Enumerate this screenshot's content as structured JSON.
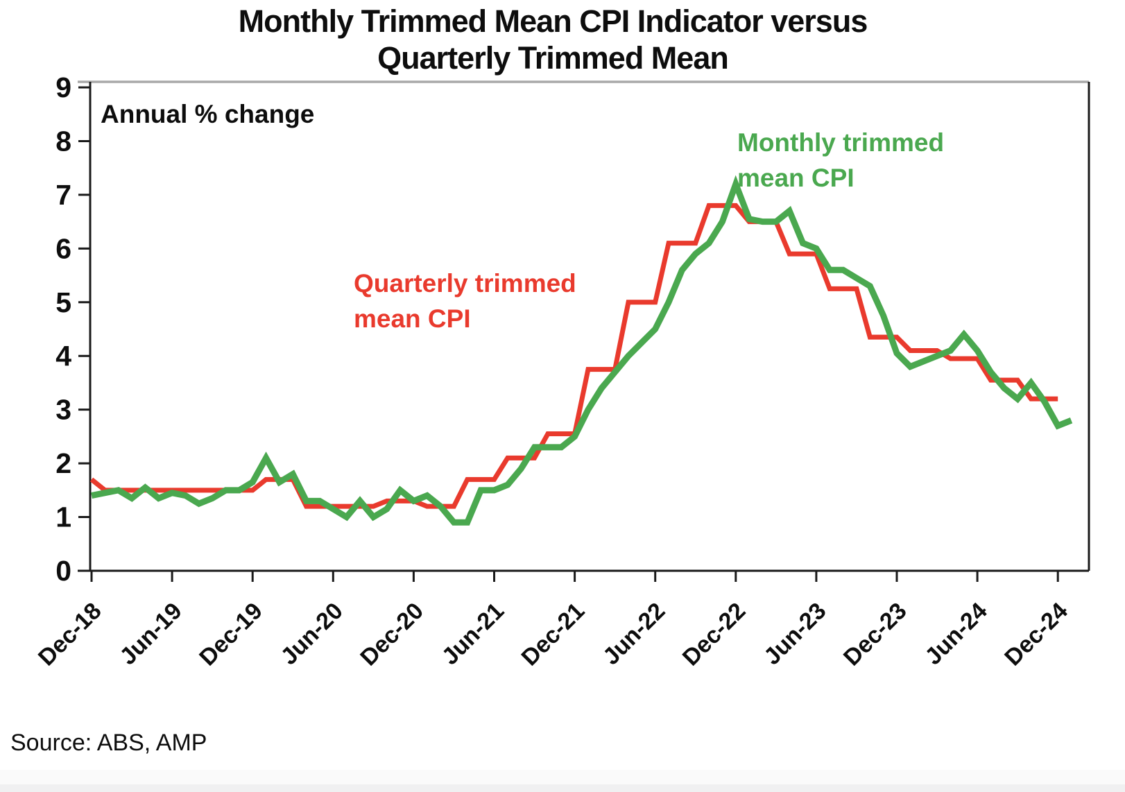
{
  "title": {
    "line1": "Monthly Trimmed Mean CPI Indicator versus",
    "line2": "Quarterly Trimmed Mean"
  },
  "annotation": "Annual % change",
  "source": "Source: ABS, AMP",
  "legend": {
    "monthly": {
      "line1": "Monthly trimmed",
      "line2": "mean CPI"
    },
    "quarterly": {
      "line1": "Quarterly trimmed",
      "line2": "mean CPI"
    }
  },
  "colors": {
    "monthly_line": "#4aa84f",
    "quarterly_line": "#e93a2d",
    "axis": "#1a1a1a",
    "top_border": "#a9a9a9"
  },
  "chart_data": {
    "type": "line",
    "title": "Monthly Trimmed Mean CPI Indicator versus Quarterly Trimmed Mean",
    "ylabel": "Annual % change",
    "ylim": [
      0,
      9
    ],
    "y_ticks": [
      0,
      1,
      2,
      3,
      4,
      5,
      6,
      7,
      8,
      9
    ],
    "x_tick_labels": [
      "Dec-18",
      "Jun-19",
      "Dec-19",
      "Jun-20",
      "Dec-20",
      "Jun-21",
      "Dec-21",
      "Jun-22",
      "Dec-22",
      "Jun-23",
      "Dec-23",
      "Jun-24",
      "Dec-24"
    ],
    "grid": false,
    "series": [
      {
        "name": "Monthly trimmed mean CPI",
        "frequency": "monthly",
        "color": "#4aa84f",
        "months": [
          "Dec-18",
          "Jan-19",
          "Feb-19",
          "Mar-19",
          "Apr-19",
          "May-19",
          "Jun-19",
          "Jul-19",
          "Aug-19",
          "Sep-19",
          "Oct-19",
          "Nov-19",
          "Dec-19",
          "Jan-20",
          "Feb-20",
          "Mar-20",
          "Apr-20",
          "May-20",
          "Jun-20",
          "Jul-20",
          "Aug-20",
          "Sep-20",
          "Oct-20",
          "Nov-20",
          "Dec-20",
          "Jan-21",
          "Feb-21",
          "Mar-21",
          "Apr-21",
          "May-21",
          "Jun-21",
          "Jul-21",
          "Aug-21",
          "Sep-21",
          "Oct-21",
          "Nov-21",
          "Dec-21",
          "Jan-22",
          "Feb-22",
          "Mar-22",
          "Apr-22",
          "May-22",
          "Jun-22",
          "Jul-22",
          "Aug-22",
          "Sep-22",
          "Oct-22",
          "Nov-22",
          "Dec-22",
          "Jan-23",
          "Feb-23",
          "Mar-23",
          "Apr-23",
          "May-23",
          "Jun-23",
          "Jul-23",
          "Aug-23",
          "Sep-23",
          "Oct-23",
          "Nov-23",
          "Dec-23",
          "Jan-24",
          "Feb-24",
          "Mar-24",
          "Apr-24",
          "May-24",
          "Jun-24",
          "Jul-24",
          "Aug-24",
          "Sep-24",
          "Oct-24",
          "Nov-24",
          "Dec-24",
          "Jan-25"
        ],
        "values": [
          1.4,
          1.45,
          1.5,
          1.35,
          1.55,
          1.35,
          1.45,
          1.4,
          1.25,
          1.35,
          1.5,
          1.5,
          1.65,
          2.1,
          1.65,
          1.8,
          1.3,
          1.3,
          1.15,
          1.0,
          1.3,
          1.0,
          1.15,
          1.5,
          1.3,
          1.4,
          1.2,
          0.9,
          0.9,
          1.5,
          1.5,
          1.6,
          1.9,
          2.3,
          2.3,
          2.3,
          2.5,
          3.0,
          3.4,
          3.7,
          4.0,
          4.25,
          4.5,
          5.0,
          5.6,
          5.9,
          6.1,
          6.5,
          7.2,
          6.55,
          6.5,
          6.5,
          6.7,
          6.1,
          6.0,
          5.6,
          5.6,
          5.45,
          5.3,
          4.75,
          4.05,
          3.8,
          3.9,
          4.0,
          4.1,
          4.4,
          4.1,
          3.7,
          3.4,
          3.2,
          3.5,
          3.15,
          2.7,
          2.8
        ]
      },
      {
        "name": "Quarterly trimmed mean CPI",
        "frequency": "quarterly",
        "color": "#e93a2d",
        "quarters": [
          {
            "label": "Dec-18",
            "month_index": 0,
            "value": 1.7
          },
          {
            "label": "Mar-19",
            "month_index": 3,
            "value": 1.5
          },
          {
            "label": "Jun-19",
            "month_index": 6,
            "value": 1.5
          },
          {
            "label": "Sep-19",
            "month_index": 9,
            "value": 1.5
          },
          {
            "label": "Dec-19",
            "month_index": 12,
            "value": 1.5
          },
          {
            "label": "Mar-20",
            "month_index": 15,
            "value": 1.7
          },
          {
            "label": "Jun-20",
            "month_index": 18,
            "value": 1.2
          },
          {
            "label": "Sep-20",
            "month_index": 21,
            "value": 1.2
          },
          {
            "label": "Dec-20",
            "month_index": 24,
            "value": 1.3
          },
          {
            "label": "Mar-21",
            "month_index": 27,
            "value": 1.2
          },
          {
            "label": "Jun-21",
            "month_index": 30,
            "value": 1.7
          },
          {
            "label": "Sep-21",
            "month_index": 33,
            "value": 2.1
          },
          {
            "label": "Dec-21",
            "month_index": 36,
            "value": 2.55
          },
          {
            "label": "Mar-22",
            "month_index": 39,
            "value": 3.75
          },
          {
            "label": "Jun-22",
            "month_index": 42,
            "value": 5.0
          },
          {
            "label": "Sep-22",
            "month_index": 45,
            "value": 6.1
          },
          {
            "label": "Dec-22",
            "month_index": 48,
            "value": 6.8
          },
          {
            "label": "Mar-23",
            "month_index": 51,
            "value": 6.5
          },
          {
            "label": "Jun-23",
            "month_index": 54,
            "value": 5.9
          },
          {
            "label": "Sep-23",
            "month_index": 57,
            "value": 5.25
          },
          {
            "label": "Dec-23",
            "month_index": 60,
            "value": 4.35
          },
          {
            "label": "Mar-24",
            "month_index": 63,
            "value": 4.1
          },
          {
            "label": "Jun-24",
            "month_index": 66,
            "value": 3.95
          },
          {
            "label": "Sep-24",
            "month_index": 69,
            "value": 3.55
          },
          {
            "label": "Dec-24",
            "month_index": 72,
            "value": 3.2
          }
        ]
      }
    ],
    "legend_position": "inside-plot"
  }
}
